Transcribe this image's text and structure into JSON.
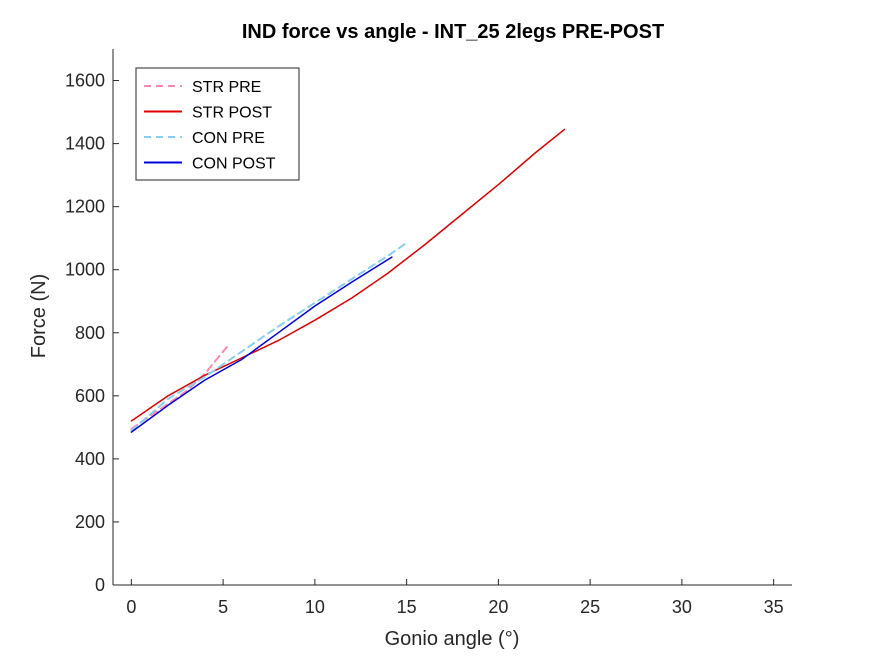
{
  "chart_data": {
    "type": "line",
    "title": "IND force vs angle - INT_25 2legs PRE-POST",
    "xlabel": "Gonio angle (°)",
    "ylabel": "Force (N)",
    "xlim": [
      -1,
      36
    ],
    "ylim": [
      0,
      1700
    ],
    "xticks": [
      0,
      5,
      10,
      15,
      20,
      25,
      30,
      35
    ],
    "yticks": [
      0,
      200,
      400,
      600,
      800,
      1000,
      1200,
      1400,
      1600
    ],
    "grid": false,
    "legend_position": "top-left",
    "series": [
      {
        "name": "STR PRE",
        "color": "#ff88b0",
        "style": "dashed",
        "x": [
          0,
          1,
          2,
          3,
          4,
          5.2
        ],
        "y": [
          495,
          535,
          575,
          615,
          670,
          755
        ]
      },
      {
        "name": "STR POST",
        "color": "#e00000",
        "style": "solid",
        "x": [
          0,
          2,
          4,
          6,
          8,
          10,
          12,
          14,
          16,
          18,
          20,
          22,
          23.6
        ],
        "y": [
          520,
          600,
          665,
          720,
          775,
          840,
          910,
          990,
          1080,
          1175,
          1270,
          1370,
          1445
        ]
      },
      {
        "name": "CON PRE",
        "color": "#88ccf0",
        "style": "dashed",
        "x": [
          0,
          2,
          4,
          6,
          8,
          10,
          12,
          14,
          15
        ],
        "y": [
          490,
          590,
          660,
          740,
          820,
          895,
          970,
          1045,
          1085
        ]
      },
      {
        "name": "CON POST",
        "color": "#0000d8",
        "style": "solid",
        "x": [
          0,
          2,
          4,
          6,
          8,
          10,
          12,
          14.2
        ],
        "y": [
          485,
          570,
          650,
          715,
          800,
          885,
          960,
          1040
        ]
      }
    ]
  }
}
